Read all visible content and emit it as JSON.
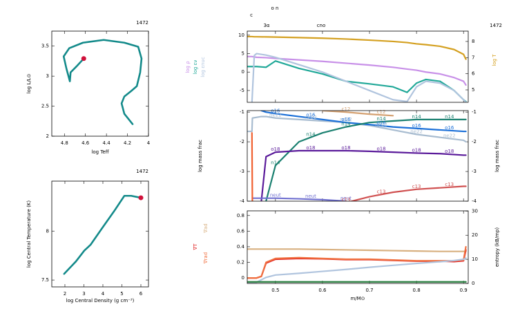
{
  "chart_data": [
    {
      "type": "line",
      "title": "1472",
      "xlabel": "log Teff",
      "ylabel": "log L/L⊙",
      "xlim": [
        4.92,
        4.0
      ],
      "xticks": [
        4.8,
        4.6,
        4.4,
        4.2,
        4
      ],
      "ylim": [
        2,
        3.75
      ],
      "yticks": [
        2,
        2.5,
        3,
        3.5
      ],
      "end_marker": "#d0103a",
      "x": [
        4.151,
        4.23,
        4.256,
        4.23,
        4.164,
        4.111,
        4.079,
        4.066,
        4.098,
        4.23,
        4.426,
        4.623,
        4.754,
        4.807,
        4.78,
        4.748,
        4.741,
        4.676,
        4.616
      ],
      "series": [
        {
          "color": "#138a8a",
          "values": [
            2.201,
            2.374,
            2.546,
            2.66,
            2.753,
            2.833,
            3.063,
            3.293,
            3.489,
            3.557,
            3.603,
            3.557,
            3.466,
            3.328,
            3.121,
            2.914,
            3.063,
            3.178,
            3.293
          ]
        }
      ]
    },
    {
      "type": "line",
      "title": "1472",
      "xlabel": "log Central Density (g cm⁻³)",
      "ylabel": "log Central Temperature (K)",
      "xlim": [
        1.31,
        6.4
      ],
      "xticks": [
        2,
        3,
        4,
        5,
        6
      ],
      "ylim": [
        7.43,
        8.51
      ],
      "yticks": [
        7.5,
        8
      ],
      "end_marker": "#d0103a",
      "x": [
        1.96,
        2.58,
        3.02,
        3.35,
        3.96,
        4.58,
        5.13,
        5.49,
        6.0
      ],
      "series": [
        {
          "color": "#138a8a",
          "values": [
            7.563,
            7.69,
            7.8,
            7.86,
            8.03,
            8.2,
            8.36,
            8.36,
            8.34
          ]
        }
      ]
    },
    {
      "type": "line",
      "title": "1472",
      "annotations": [
        "c",
        "o n",
        "3α",
        "cno"
      ],
      "xlim": [
        0.44,
        0.91
      ],
      "ylim": [
        -8.2,
        11.1
      ],
      "yticks": [
        -5,
        0,
        5,
        10
      ],
      "y2lim": [
        4.23,
        8.64
      ],
      "y2ticks": [
        5,
        6,
        7,
        8
      ],
      "legend": "left",
      "x": [
        0.44,
        0.45,
        0.455,
        0.46,
        0.48,
        0.5,
        0.55,
        0.6,
        0.65,
        0.7,
        0.75,
        0.78,
        0.8,
        0.82,
        0.85,
        0.88,
        0.9,
        0.905
      ],
      "series": [
        {
          "name": "log ρ",
          "color": "#c890e8",
          "values": [
            4.2,
            4.2,
            4.1,
            4.0,
            3.9,
            3.7,
            3.3,
            2.9,
            2.4,
            1.9,
            1.3,
            0.8,
            0.5,
            0,
            -0.5,
            -1.5,
            -2.5,
            -3.5
          ]
        },
        {
          "name": "log εν",
          "color": "#20a898",
          "values": [
            1.5,
            1.5,
            1.5,
            1.5,
            1.3,
            3,
            1,
            -0.5,
            -2.5,
            -3.2,
            -4,
            -5.5,
            -3,
            -2,
            -2.5,
            -5,
            -7.5,
            -8
          ]
        },
        {
          "name": "log εnuc",
          "color": "#b0c4de",
          "values": [
            null,
            -8.3,
            4.5,
            5,
            4.6,
            4,
            2,
            0,
            -2.5,
            -5,
            -7.5,
            -8,
            -4,
            -2.5,
            -3,
            -5,
            -7.5,
            -8.2
          ]
        },
        {
          "name": "log T",
          "axis": "y2",
          "color": "#d4a020",
          "values": [
            8.3,
            8.3,
            8.29,
            8.29,
            8.28,
            8.27,
            8.24,
            8.2,
            8.15,
            8.08,
            8.0,
            7.93,
            7.85,
            7.8,
            7.7,
            7.5,
            7.2,
            6.9
          ]
        }
      ]
    },
    {
      "type": "line",
      "ylabel": "log mass frac",
      "y2label": "log mass frac",
      "xlim": [
        0.44,
        0.91
      ],
      "ylim": [
        -4,
        -0.95
      ],
      "yticks": [
        -4,
        -3,
        -2,
        -1
      ],
      "y2lim": [
        -4,
        -0.95
      ],
      "y2ticks": [
        -4,
        -3,
        -2,
        -1
      ],
      "legend": "inline",
      "x": [
        0.44,
        0.45,
        0.451,
        0.47,
        0.48,
        0.5,
        0.55,
        0.6,
        0.65,
        0.7,
        0.75,
        0.8,
        0.85,
        0.9,
        0.905
      ],
      "series": [
        {
          "name": "ne22",
          "color": "#a8bcd0",
          "values": [
            -1.65,
            -1.65,
            -1.2,
            -1.15,
            -1.15,
            -1.2,
            -1.25,
            -1.3,
            -1.35,
            -1.45,
            -1.6,
            -1.75,
            -1.85,
            -1.95,
            -2.0
          ]
        },
        {
          "name": "o16",
          "color": "#1a6fd8",
          "values": [
            null,
            null,
            null,
            -0.95,
            -1.0,
            -1.05,
            -1.15,
            -1.25,
            -1.35,
            -1.42,
            -1.5,
            -1.55,
            -1.6,
            -1.65,
            -1.65
          ]
        },
        {
          "name": "n14",
          "color": "#1a8070",
          "values": [
            null,
            null,
            null,
            null,
            -4.0,
            -2.8,
            -2.0,
            -1.7,
            -1.5,
            -1.35,
            -1.3,
            -1.25,
            -1.25,
            -1.25,
            -1.25
          ]
        },
        {
          "name": "o18",
          "color": "#5a1a9a",
          "values": [
            null,
            null,
            null,
            -4.0,
            -2.5,
            -2.35,
            -2.3,
            -2.3,
            -2.3,
            -2.32,
            -2.35,
            -2.38,
            -2.4,
            -2.45,
            -2.45
          ]
        },
        {
          "name": "neut",
          "color": "#7070d0",
          "values": [
            null,
            null,
            -3.9,
            -3.9,
            -3.9,
            -3.9,
            -3.92,
            -3.95,
            -4.0,
            null,
            null,
            null,
            null,
            null,
            null
          ]
        },
        {
          "name": "c12",
          "color": "#d4a070",
          "values": [
            null,
            null,
            null,
            null,
            null,
            null,
            null,
            -0.95,
            -1.0,
            -1.07,
            -1.12,
            null,
            null,
            null,
            null
          ]
        },
        {
          "name": "c13",
          "color": "#d05050",
          "values": [
            null,
            null,
            null,
            null,
            null,
            null,
            null,
            null,
            -4.05,
            -3.85,
            -3.7,
            -3.6,
            -3.55,
            -3.5,
            -3.5
          ]
        },
        {
          "color": "#f06030",
          "values": [
            null,
            -1.7,
            -4.2,
            null,
            null,
            null,
            null,
            null,
            null,
            null,
            null,
            null,
            null,
            null,
            null
          ]
        }
      ]
    },
    {
      "type": "line",
      "xlabel": "m/M⊙",
      "y2label": "entropy (kB/mp)",
      "xlim": [
        0.44,
        0.91
      ],
      "xticks": [
        0.5,
        0.6,
        0.7,
        0.8,
        0.9
      ],
      "ylim": [
        -0.07,
        0.86
      ],
      "yticks": [
        0,
        0.2,
        0.4,
        0.6,
        0.8
      ],
      "y2lim": [
        0,
        30.1
      ],
      "y2ticks": [
        0,
        10,
        20,
        30
      ],
      "legend": "left",
      "x": [
        0.44,
        0.45,
        0.46,
        0.47,
        0.48,
        0.5,
        0.55,
        0.6,
        0.65,
        0.7,
        0.75,
        0.8,
        0.85,
        0.88,
        0.9,
        0.905
      ],
      "series": [
        {
          "name": "∇ad",
          "color": "#d8b080",
          "values": [
            0.37,
            0.37,
            0.37,
            0.37,
            0.37,
            0.37,
            0.37,
            0.365,
            0.36,
            0.355,
            0.35,
            0.345,
            0.34,
            0.34,
            0.34,
            0.34
          ]
        },
        {
          "name": "∇T",
          "color": "#e02020",
          "values": [
            0,
            0,
            0,
            0.02,
            0.19,
            0.24,
            0.25,
            0.245,
            0.235,
            0.235,
            0.225,
            0.215,
            0.215,
            0.21,
            0.22,
            0.36
          ]
        },
        {
          "name": "∇rad",
          "color": "#f07040",
          "values": [
            0,
            0,
            0,
            0.02,
            0.2,
            0.25,
            0.26,
            0.25,
            0.24,
            0.24,
            0.23,
            0.22,
            0.22,
            0.22,
            0.23,
            0.4
          ]
        },
        {
          "axis": "y2",
          "color": "#b0c4de",
          "values": [
            0.5,
            0.5,
            0.5,
            1.5,
            2.5,
            3.5,
            4.2,
            5,
            5.8,
            6.7,
            7.5,
            8.3,
            9,
            9.5,
            10,
            10.5
          ]
        },
        {
          "color": "#2a8040",
          "values": [
            -0.05,
            -0.05,
            -0.05,
            -0.05,
            -0.05,
            -0.05,
            -0.05,
            -0.05,
            -0.05,
            -0.05,
            -0.05,
            -0.05,
            -0.05,
            -0.05,
            -0.05,
            -0.05
          ]
        }
      ]
    }
  ]
}
